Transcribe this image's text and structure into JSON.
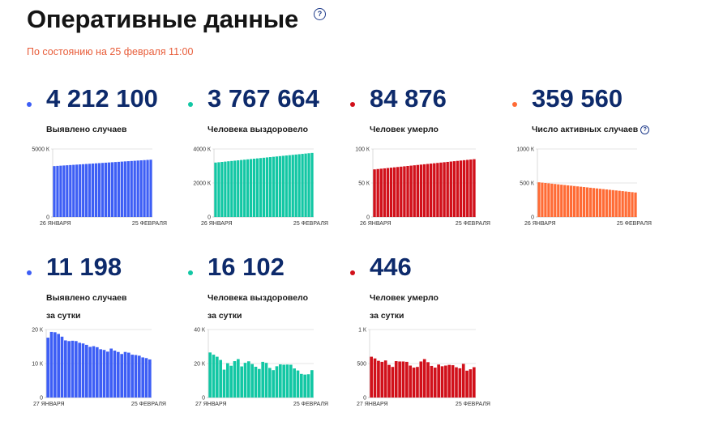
{
  "header": {
    "title": "Оперативные данные",
    "status": "По состоянию на 25 февраля 11:00"
  },
  "cards": [
    {
      "value": "4 212 100",
      "label": "Выявлено случаев",
      "label2": "",
      "color": "#3d5ef5",
      "help": false
    },
    {
      "value": "3 767 664",
      "label": "Человека выздоровело",
      "label2": "",
      "color": "#12c7a4",
      "help": false
    },
    {
      "value": "84 876",
      "label": "Человек умерло",
      "label2": "",
      "color": "#d1101a",
      "help": false
    },
    {
      "value": "359 560",
      "label": "Число активных случаев",
      "label2": "",
      "color": "#ff6b35",
      "help": true
    },
    {
      "value": "11 198",
      "label": "Выявлено случаев",
      "label2": "за сутки",
      "color": "#3d5ef5",
      "help": false
    },
    {
      "value": "16 102",
      "label": "Человека выздоровело",
      "label2": "за сутки",
      "color": "#12c7a4",
      "help": false
    },
    {
      "value": "446",
      "label": "Человек умерло",
      "label2": "за сутки",
      "color": "#d1101a",
      "help": false
    }
  ],
  "chart_data": [
    {
      "type": "bar",
      "color": "#3d5ef5",
      "ylim": [
        0,
        5000
      ],
      "yticks": [
        0,
        5000
      ],
      "ytick_labels": [
        "0",
        "5000 К"
      ],
      "xtick_labels": [
        "26 ЯНВАРЯ",
        "25 ФЕВРАЛЯ"
      ],
      "start": 3740,
      "end": 4212
    },
    {
      "type": "bar",
      "color": "#12c7a4",
      "ylim": [
        0,
        4000
      ],
      "yticks": [
        0,
        2000,
        4000
      ],
      "ytick_labels": [
        "0",
        "2000 К",
        "4000 К"
      ],
      "xtick_labels": [
        "26 ЯНВАРЯ",
        "25 ФЕВРАЛЯ"
      ],
      "start": 3200,
      "end": 3768
    },
    {
      "type": "bar",
      "color": "#d1101a",
      "ylim": [
        0,
        100
      ],
      "yticks": [
        0,
        50,
        100
      ],
      "ytick_labels": [
        "0",
        "50 К",
        "100 К"
      ],
      "xtick_labels": [
        "26 ЯНВАРЯ",
        "25 ФЕВРАЛЯ"
      ],
      "start": 70,
      "end": 85
    },
    {
      "type": "bar",
      "color": "#ff6b35",
      "ylim": [
        0,
        1000
      ],
      "yticks": [
        0,
        500,
        1000
      ],
      "ytick_labels": [
        "0",
        "500 К",
        "1000 К"
      ],
      "xtick_labels": [
        "26 ЯНВАРЯ",
        "25 ФЕВРАЛЯ"
      ],
      "start": 510,
      "end": 360
    },
    {
      "type": "bar",
      "color": "#3d5ef5",
      "ylim": [
        0,
        20
      ],
      "yticks": [
        0,
        10,
        20
      ],
      "ytick_labels": [
        "0",
        "10 К",
        "20 К"
      ],
      "xtick_labels": [
        "27 ЯНВАРЯ",
        "25 ФЕВРАЛЯ"
      ],
      "values": [
        17.6,
        19.3,
        19.2,
        18.7,
        17.9,
        16.8,
        16.6,
        16.7,
        16.6,
        16.1,
        15.9,
        15.5,
        14.9,
        15.1,
        14.8,
        14.2,
        14.0,
        13.5,
        14.4,
        13.8,
        13.4,
        12.8,
        13.4,
        13.2,
        12.6,
        12.5,
        12.3,
        11.8,
        11.6,
        11.2
      ]
    },
    {
      "type": "bar",
      "color": "#12c7a4",
      "ylim": [
        0,
        40
      ],
      "yticks": [
        0,
        20,
        40
      ],
      "ytick_labels": [
        "0",
        "20 К",
        "40 К"
      ],
      "xtick_labels": [
        "27 ЯНВАРЯ",
        "25 ФЕВРАЛЯ"
      ],
      "values": [
        26.5,
        25.2,
        24.0,
        22.1,
        16.4,
        20.2,
        18.7,
        21.4,
        22.6,
        18.3,
        20.4,
        21.3,
        19.7,
        18.1,
        16.8,
        21.0,
        20.4,
        17.4,
        16.1,
        18.4,
        19.5,
        19.3,
        19.4,
        19.3,
        17.1,
        15.9,
        13.9,
        13.5,
        13.7,
        16.1
      ]
    },
    {
      "type": "bar",
      "color": "#d1101a",
      "ylim": [
        0,
        1000
      ],
      "yticks": [
        0,
        500,
        1000
      ],
      "ytick_labels": [
        "0",
        "500",
        "1 К"
      ],
      "xtick_labels": [
        "27 ЯНВАРЯ",
        "25 ФЕВРАЛЯ"
      ],
      "values": [
        600,
        575,
        540,
        525,
        545,
        480,
        450,
        535,
        530,
        530,
        525,
        470,
        440,
        450,
        530,
        565,
        520,
        465,
        440,
        485,
        460,
        470,
        480,
        475,
        445,
        430,
        495,
        395,
        415,
        446
      ]
    }
  ]
}
